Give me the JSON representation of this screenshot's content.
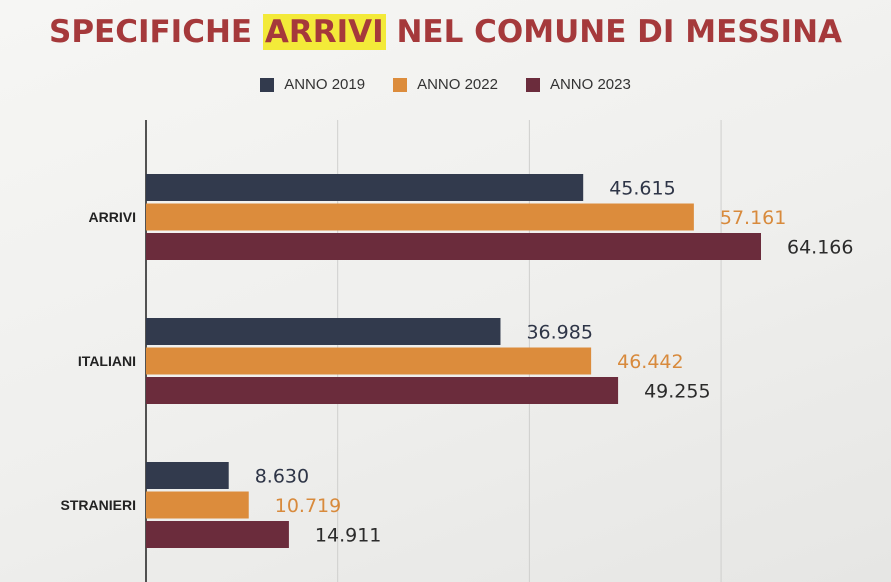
{
  "title": {
    "before": "SPECIFICHE ",
    "highlight": "ARRIVI",
    "after": " NEL COMUNE DI MESSINA"
  },
  "chart_data": {
    "type": "bar",
    "orientation": "horizontal",
    "categories": [
      "ARRIVI",
      "ITALIANI",
      "STRANIERI"
    ],
    "series": [
      {
        "name": "ANNO 2019",
        "color": "#323a4d",
        "labelColor": "#2e3547",
        "values": [
          45615,
          36985,
          8630
        ],
        "labels": [
          "45.615",
          "36.985",
          "8.630"
        ]
      },
      {
        "name": "ANNO 2022",
        "color": "#dc8c3c",
        "labelColor": "#d88a3c",
        "values": [
          57161,
          46442,
          10719
        ],
        "labels": [
          "57.161",
          "46.442",
          "10.719"
        ]
      },
      {
        "name": "ANNO 2023",
        "color": "#6b2c3c",
        "labelColor": "#2b2b2b",
        "values": [
          64166,
          49255,
          14911
        ],
        "labels": [
          "64.166",
          "49.255",
          "14.911"
        ]
      }
    ],
    "xlim": [
      0,
      75000
    ],
    "grid": true,
    "legend": "top-center"
  }
}
